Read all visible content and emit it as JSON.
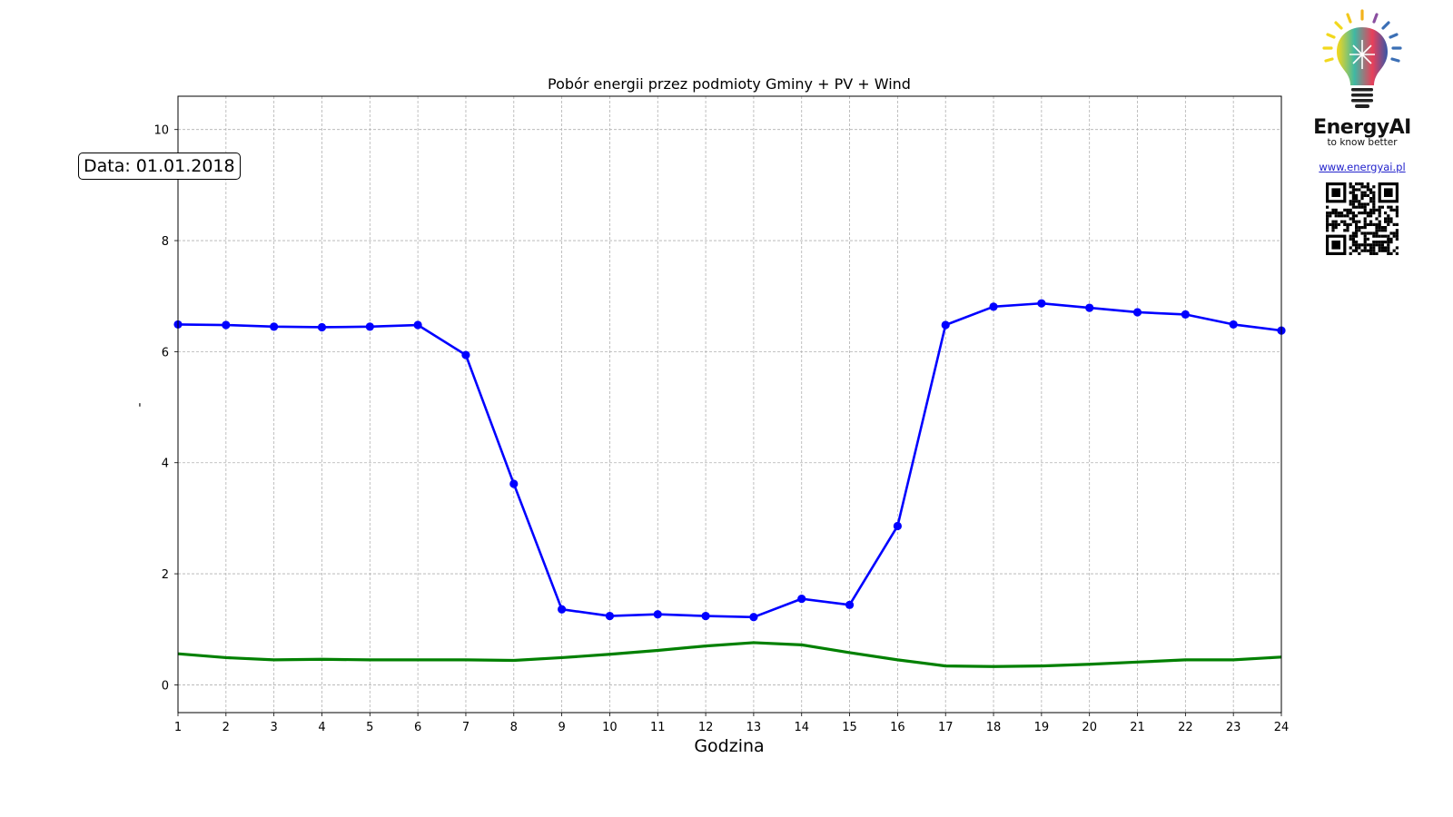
{
  "chart_data": {
    "type": "line",
    "title": "Pobór energii przez podmioty Gminy + PV + Wind",
    "xlabel": "Godzina",
    "ylabel": "-",
    "xlim": [
      1,
      24
    ],
    "ylim": [
      -0.5,
      10.6
    ],
    "x": [
      1,
      2,
      3,
      4,
      5,
      6,
      7,
      8,
      9,
      10,
      11,
      12,
      13,
      14,
      15,
      16,
      17,
      18,
      19,
      20,
      21,
      22,
      23,
      24
    ],
    "xticks": [
      1,
      2,
      3,
      4,
      5,
      6,
      7,
      8,
      9,
      10,
      11,
      12,
      13,
      14,
      15,
      16,
      17,
      18,
      19,
      20,
      21,
      22,
      23,
      24
    ],
    "yticks": [
      0,
      2,
      4,
      6,
      8,
      10
    ],
    "grid": true,
    "series": [
      {
        "color": "#0000ff",
        "marker": "circle",
        "values": [
          6.49,
          6.48,
          6.45,
          6.44,
          6.45,
          6.48,
          5.94,
          3.62,
          1.36,
          1.24,
          1.27,
          1.24,
          1.22,
          1.55,
          1.44,
          2.86,
          6.48,
          6.81,
          6.87,
          6.79,
          6.71,
          6.67,
          6.49,
          6.38
        ]
      },
      {
        "color": "#008000",
        "marker": "none",
        "values": [
          0.56,
          0.49,
          0.45,
          0.46,
          0.45,
          0.45,
          0.45,
          0.44,
          0.49,
          0.55,
          0.62,
          0.7,
          0.76,
          0.72,
          0.58,
          0.45,
          0.34,
          0.33,
          0.34,
          0.37,
          0.41,
          0.45,
          0.45,
          0.5
        ]
      }
    ]
  },
  "annotation": {
    "date_label": "Data: 01.01.2018"
  },
  "brand": {
    "name": "EnergyAI",
    "tagline": "to know better",
    "url": "www.energyai.pl",
    "logo_icon": "lightbulb-icon",
    "qr_icon": "qr-code-icon"
  }
}
